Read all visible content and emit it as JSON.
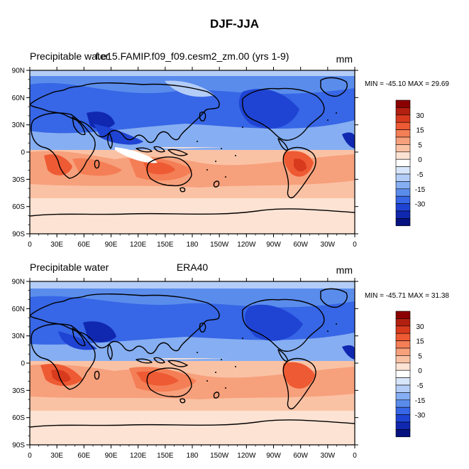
{
  "figure": {
    "title": "DJF-JJA",
    "panels": [
      {
        "left_label": "Precipitable water",
        "center_label": "f.e15.FAMIP.f09_f09.cesm2_zm.00 (yrs 1-9)",
        "units": "mm",
        "stats": "MIN = -45.10 MAX =  29.69"
      },
      {
        "left_label": "Precipitable water",
        "center_label": "ERA40",
        "units": "mm",
        "stats": "MIN = -45.71 MAX =  31.38"
      }
    ],
    "lat_ticks": [
      "90N",
      "60N",
      "30N",
      "0",
      "30S",
      "60S",
      "90S"
    ],
    "lon_ticks": [
      "0",
      "30E",
      "60E",
      "90E",
      "120E",
      "150E",
      "180",
      "150W",
      "120W",
      "90W",
      "60W",
      "30W",
      "0"
    ],
    "colorbar": {
      "labels": [
        "30",
        "15",
        "5",
        "0",
        "-5",
        "-15",
        "-30"
      ],
      "colors": [
        "#8b0000",
        "#b3200f",
        "#d83a1e",
        "#ee5a33",
        "#f47e55",
        "#f7a07c",
        "#fac2a4",
        "#fde3d3",
        "#ffffff",
        "#d8e6fb",
        "#b3cdf7",
        "#86aef2",
        "#5a8cec",
        "#3766e6",
        "#1f44d4",
        "#1028b0",
        "#06127f"
      ]
    }
  }
}
